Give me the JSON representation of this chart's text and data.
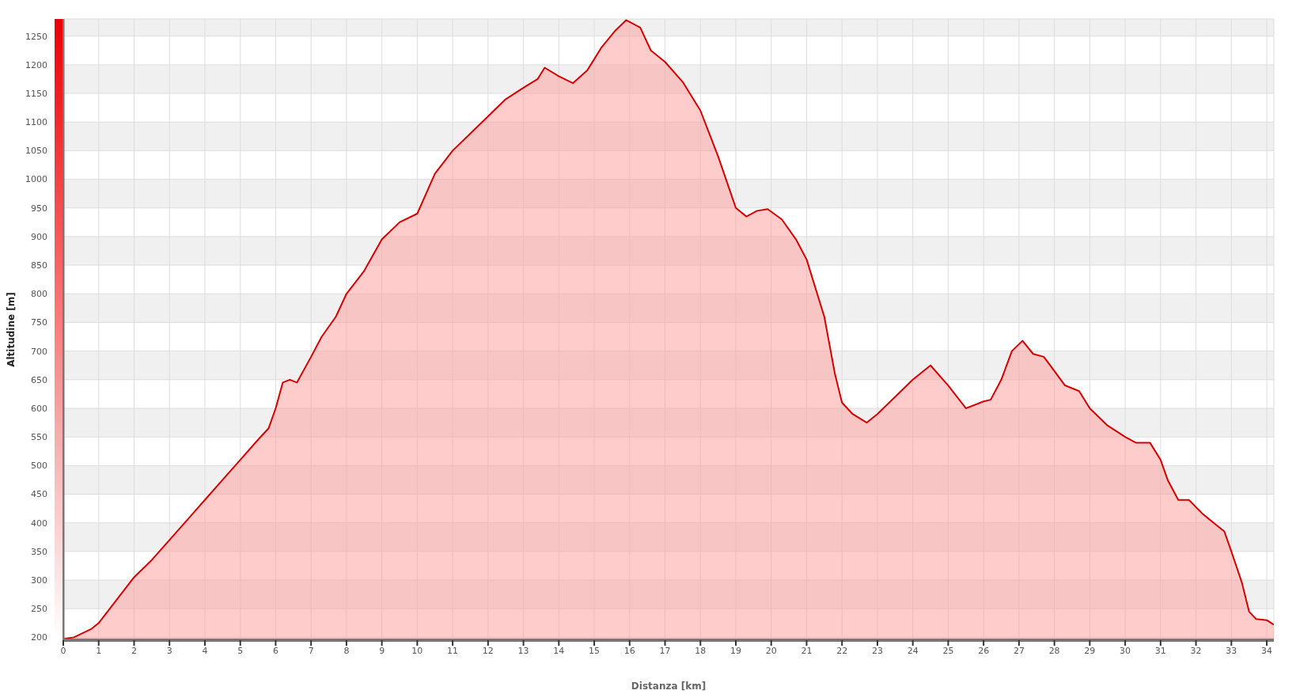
{
  "chart_data": {
    "type": "area",
    "xlabel": "Distanza [km]",
    "ylabel": "Altitudine [m]",
    "x": [
      0,
      0.3,
      0.8,
      1,
      1.5,
      2,
      2.5,
      3,
      3.5,
      4,
      4.5,
      5,
      5.5,
      5.8,
      6,
      6.2,
      6.4,
      6.6,
      7,
      7.3,
      7.7,
      8,
      8.5,
      9,
      9.5,
      10,
      10.5,
      11,
      11.5,
      12,
      12.5,
      13,
      13.4,
      13.6,
      14,
      14.4,
      14.8,
      15.2,
      15.6,
      15.9,
      16.3,
      16.6,
      17,
      17.5,
      18,
      18.5,
      19,
      19.3,
      19.6,
      19.9,
      20.3,
      20.7,
      21,
      21.5,
      21.8,
      22,
      22.3,
      22.7,
      23,
      23.5,
      24,
      24.5,
      25,
      25.5,
      26,
      26.2,
      26.5,
      26.8,
      27.1,
      27.4,
      27.7,
      28,
      28.3,
      28.7,
      29,
      29.5,
      30,
      30.3,
      30.7,
      31,
      31.2,
      31.5,
      31.8,
      32.2,
      32.5,
      32.8,
      33,
      33.3,
      33.5,
      33.7,
      34,
      34.2
    ],
    "series": [
      {
        "color": "#d40000",
        "values": [
          197,
          200,
          215,
          225,
          265,
          305,
          335,
          370,
          405,
          440,
          475,
          510,
          545,
          565,
          600,
          645,
          650,
          645,
          690,
          725,
          760,
          800,
          840,
          895,
          925,
          940,
          1010,
          1050,
          1080,
          1110,
          1140,
          1160,
          1175,
          1195,
          1180,
          1168,
          1190,
          1230,
          1260,
          1278,
          1265,
          1225,
          1205,
          1170,
          1120,
          1040,
          950,
          935,
          945,
          948,
          930,
          895,
          860,
          760,
          660,
          610,
          590,
          575,
          590,
          620,
          650,
          675,
          640,
          600,
          612,
          615,
          650,
          700,
          718,
          695,
          690,
          665,
          640,
          630,
          600,
          570,
          550,
          540,
          540,
          510,
          475,
          440,
          440,
          415,
          400,
          385,
          350,
          295,
          245,
          232,
          230,
          222
        ]
      }
    ],
    "xlim": [
      0,
      34.2
    ],
    "xticks": [
      0,
      1,
      2,
      3,
      4,
      5,
      6,
      7,
      8,
      9,
      10,
      11,
      12,
      13,
      14,
      15,
      16,
      17,
      18,
      19,
      20,
      21,
      22,
      23,
      24,
      25,
      26,
      27,
      28,
      29,
      30,
      31,
      32,
      33,
      34
    ],
    "ylim": [
      195,
      1280
    ],
    "yticks": [
      200,
      250,
      300,
      350,
      400,
      450,
      500,
      550,
      600,
      650,
      700,
      750,
      800,
      850,
      900,
      950,
      1000,
      1050,
      1100,
      1150,
      1200,
      1250
    ],
    "grid": true
  }
}
